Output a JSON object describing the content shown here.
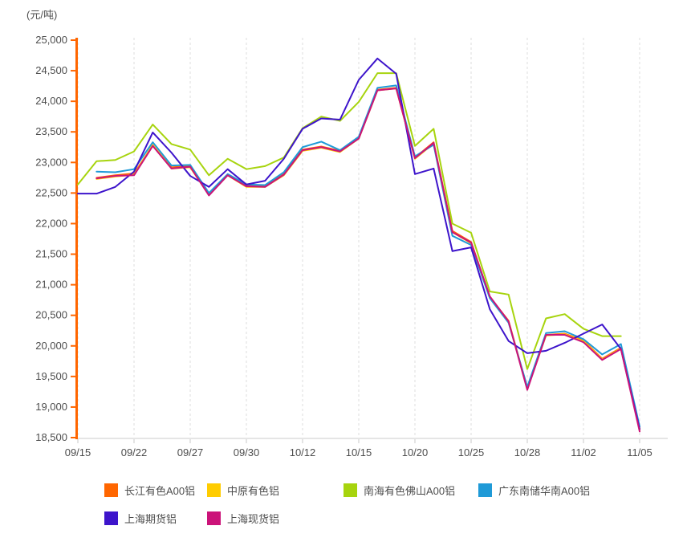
{
  "chart_data": {
    "type": "line",
    "unit_label": "(元/吨)",
    "x_tick_labels": [
      "09/15",
      "09/22",
      "09/27",
      "09/30",
      "10/12",
      "10/15",
      "10/20",
      "10/25",
      "10/28",
      "11/02",
      "11/05"
    ],
    "x_label_indices": [
      0,
      3,
      6,
      9,
      12,
      15,
      18,
      21,
      24,
      27,
      30
    ],
    "points_per_series": 31,
    "y_tick_labels": [
      "25,000",
      "24,500",
      "24,000",
      "23,500",
      "23,000",
      "22,500",
      "22,000",
      "21,500",
      "21,000",
      "20,500",
      "20,000",
      "19,500",
      "19,000",
      "18,500"
    ],
    "ylim": [
      18500,
      25000
    ],
    "y_step": 500,
    "grid": "vertical-dashed",
    "legend_position": "bottom",
    "axis_color": "#ff6600",
    "x_axis_color": "#e5e5e5",
    "gridline_color": "#dcdcdc",
    "text_color": "#4d4d4d",
    "series": [
      {
        "name": "长江有色A00铝",
        "color": "#ff6600",
        "values": [
          null,
          22750,
          22790,
          22820,
          23280,
          22920,
          22940,
          22480,
          22800,
          22620,
          22610,
          22810,
          23210,
          23260,
          23190,
          23400,
          24190,
          24220,
          23080,
          23330,
          21880,
          21700,
          20800,
          20410,
          19310,
          20180,
          20200,
          20090,
          19790,
          19970,
          18630
        ]
      },
      {
        "name": "中原有色铝",
        "color": "#ffcc00",
        "values": [
          null,
          22730,
          22770,
          22800,
          23290,
          22900,
          22920,
          22470,
          22790,
          22600,
          22600,
          22790,
          23190,
          23240,
          23170,
          23390,
          24180,
          24210,
          23060,
          23310,
          21860,
          21680,
          20790,
          20400,
          19300,
          20170,
          20190,
          20080,
          19780,
          19960,
          18650
        ]
      },
      {
        "name": "南海有色佛山A00铝",
        "color": "#a7d40e",
        "values": [
          22640,
          23020,
          23040,
          23180,
          23620,
          23300,
          23210,
          22790,
          23060,
          22890,
          22940,
          23080,
          23560,
          23750,
          23680,
          23990,
          24460,
          24460,
          23270,
          23550,
          22000,
          21850,
          20890,
          20840,
          19620,
          20450,
          20520,
          20280,
          20160,
          20160,
          null
        ]
      },
      {
        "name": "广东南储华南A00铝",
        "color": "#1f9ad7",
        "values": [
          null,
          22850,
          22840,
          22890,
          23330,
          22950,
          22960,
          22500,
          22810,
          22640,
          22630,
          22840,
          23250,
          23340,
          23200,
          23420,
          24220,
          24260,
          23100,
          23290,
          21800,
          21650,
          20780,
          20380,
          19330,
          20210,
          20240,
          20110,
          19860,
          20030,
          18680
        ]
      },
      {
        "name": "上海期货铝",
        "color": "#3d14cb",
        "values": [
          22490,
          22490,
          22600,
          22850,
          23490,
          23160,
          22780,
          22600,
          22890,
          22640,
          22700,
          23060,
          23550,
          23720,
          23700,
          24350,
          24700,
          24450,
          22810,
          22900,
          21550,
          21610,
          20600,
          20080,
          19880,
          19920,
          20050,
          20200,
          20350,
          19950,
          18640
        ]
      },
      {
        "name": "上海现货铝",
        "color": "#cb1379",
        "values": [
          null,
          22740,
          22780,
          22790,
          23270,
          22900,
          22930,
          22460,
          22790,
          22610,
          22600,
          22800,
          23200,
          23250,
          23180,
          23390,
          24180,
          24210,
          23070,
          23320,
          21860,
          21690,
          20810,
          20400,
          19280,
          20180,
          20180,
          20060,
          19770,
          19950,
          18600
        ]
      }
    ]
  }
}
